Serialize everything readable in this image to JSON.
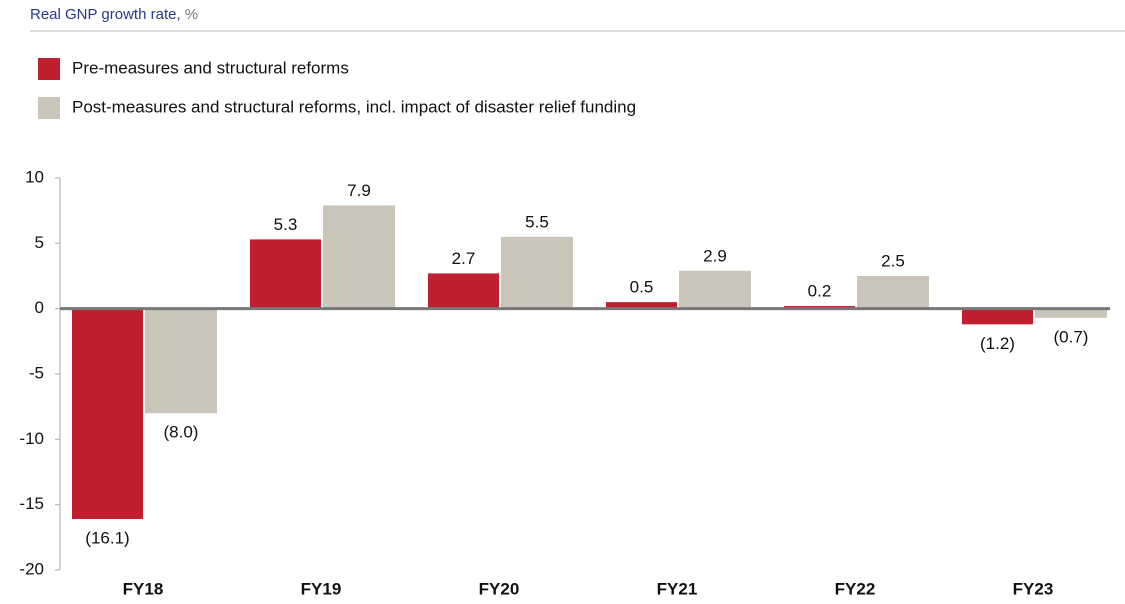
{
  "chart_data": {
    "type": "bar",
    "title": "Real GNP growth rate,",
    "unit": "%",
    "categories": [
      "FY18",
      "FY19",
      "FY20",
      "FY21",
      "FY22",
      "FY23"
    ],
    "series": [
      {
        "name": "Pre-measures and structural reforms",
        "color": "#c01f2f",
        "values": [
          -16.1,
          5.3,
          2.7,
          0.5,
          0.2,
          -1.2
        ],
        "value_labels": [
          "(16.1)",
          "5.3",
          "2.7",
          "0.5",
          "0.2",
          "(1.2)"
        ]
      },
      {
        "name": "Post-measures and structural reforms, incl. impact of disaster relief funding",
        "color": "#c9c6b9",
        "values": [
          -8.0,
          7.9,
          5.5,
          2.9,
          2.5,
          -0.7
        ],
        "value_labels": [
          "(8.0)",
          "7.9",
          "5.5",
          "2.9",
          "2.5",
          "(0.7)"
        ]
      }
    ],
    "ylim": [
      -20,
      10
    ],
    "yticks": [
      -20,
      -15,
      -10,
      -5,
      0,
      5,
      10
    ],
    "legend": "top-left"
  }
}
